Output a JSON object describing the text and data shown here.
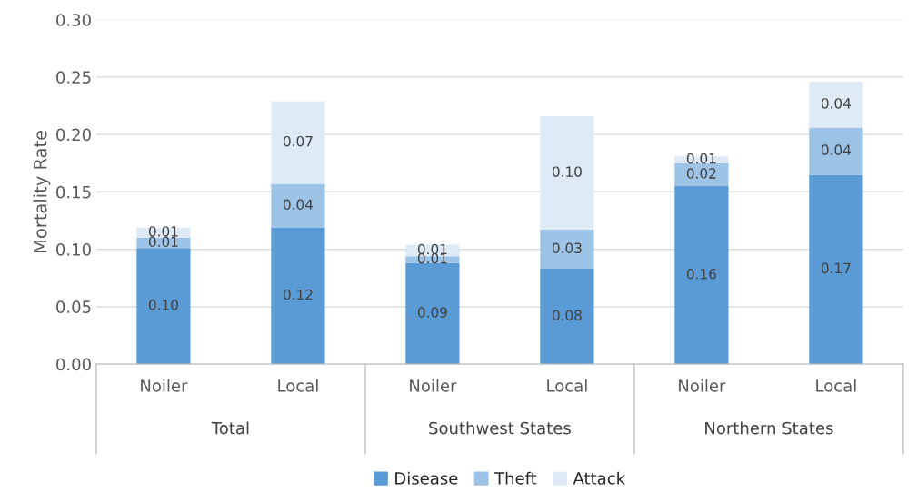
{
  "chart_data": {
    "type": "bar",
    "stacked": true,
    "ylabel": "Mortality Rate",
    "categories": [
      "Noiler",
      "Local",
      "Noiler",
      "Local",
      "Noiler",
      "Local"
    ],
    "annotations": [
      "Total",
      "Southwest States",
      "Northern States"
    ],
    "series": [
      {
        "name": "Disease",
        "color": "#5b9bd5",
        "values": [
          0.101,
          0.119,
          0.088,
          0.083,
          0.155,
          0.165
        ],
        "value_labels": [
          "0.10",
          "0.12",
          "0.09",
          "0.08",
          "0.16",
          "0.17"
        ]
      },
      {
        "name": "Theft",
        "color": "#9dc3e6",
        "values": [
          0.009,
          0.038,
          0.006,
          0.034,
          0.02,
          0.041
        ],
        "value_labels": [
          "0.01",
          "0.04",
          "0.01",
          "0.03",
          "0.02",
          "0.04"
        ]
      },
      {
        "name": "Attack",
        "color": "#deebf7",
        "values": [
          0.009,
          0.072,
          0.01,
          0.099,
          0.006,
          0.04
        ],
        "value_labels": [
          "0.01",
          "0.07",
          "0.01",
          "0.10",
          "0.01",
          "0.04"
        ]
      }
    ],
    "ylim": [
      0,
      0.3
    ],
    "yticks": [
      {
        "value": 0,
        "label": "0.00"
      },
      {
        "value": 0.05,
        "label": "0.05"
      },
      {
        "value": 0.1,
        "label": "0.10"
      },
      {
        "value": 0.15,
        "label": "0.15"
      },
      {
        "value": 0.2,
        "label": "0.20"
      },
      {
        "value": 0.25,
        "label": "0.25"
      },
      {
        "value": 0.3,
        "label": "0.30"
      }
    ],
    "grid": "y",
    "legend": "bottom"
  }
}
